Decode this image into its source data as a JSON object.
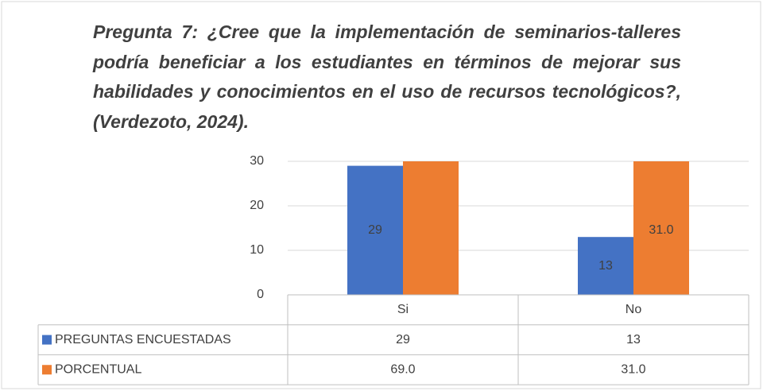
{
  "chart_data": {
    "type": "bar",
    "title": "Pregunta 7: ¿Cree que la implementación de seminarios-talleres podría beneficiar a los estudiantes en términos de mejorar sus habilidades y conocimientos en el uso de recursos tecnológicos?, (Verdezoto, 2024).",
    "categories": [
      "Si",
      "No"
    ],
    "series": [
      {
        "name": "PREGUNTAS ENCUESTADAS",
        "color": "#4472c4",
        "values": [
          29,
          13
        ]
      },
      {
        "name": "PORCENTUAL",
        "color": "#ed7d31",
        "values": [
          69,
          31
        ],
        "value_labels": [
          "69.0",
          "31.0"
        ]
      }
    ],
    "ylim": [
      0,
      30
    ],
    "yticks": [
      0,
      10,
      20,
      30
    ],
    "grid": true,
    "data_table": true
  }
}
